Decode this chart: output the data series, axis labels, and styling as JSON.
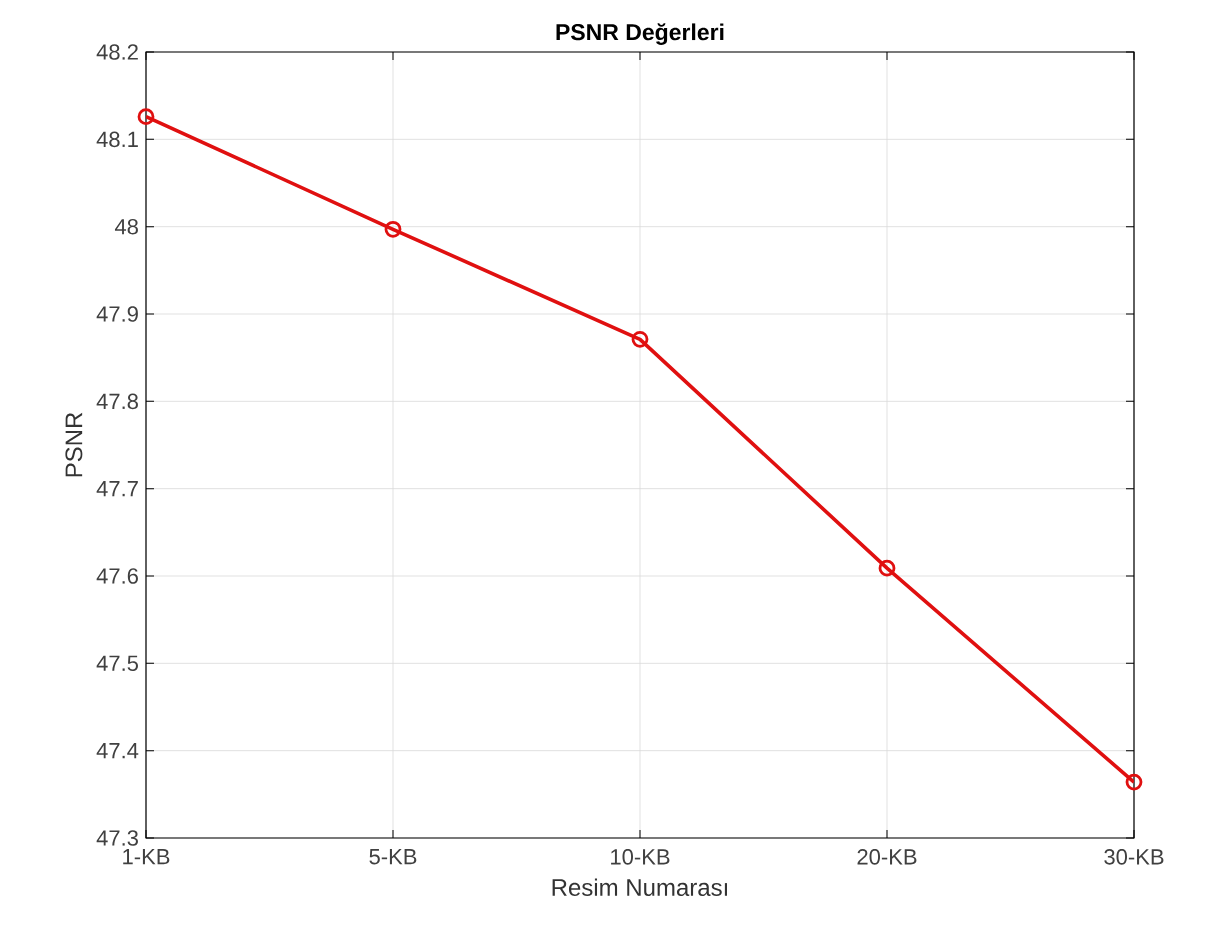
{
  "chart_data": {
    "type": "line",
    "title": "**PSNR Değerleri**",
    "xlabel": "Resim Numarası",
    "ylabel": "PSNR",
    "categories": [
      "1-KB",
      "5-KB",
      "10-KB",
      "20-KB",
      "30-KB"
    ],
    "series": [
      {
        "color": "#e01010",
        "values": [
          48.126,
          47.997,
          47.871,
          47.609,
          47.364
        ]
      }
    ],
    "ylim": [
      47.3,
      48.2
    ],
    "yticks": [
      47.3,
      47.4,
      47.5,
      47.6,
      47.7,
      47.8,
      47.9,
      48,
      48.1,
      48.2
    ],
    "grid": true,
    "marker": "circle",
    "line_style": "solid"
  }
}
